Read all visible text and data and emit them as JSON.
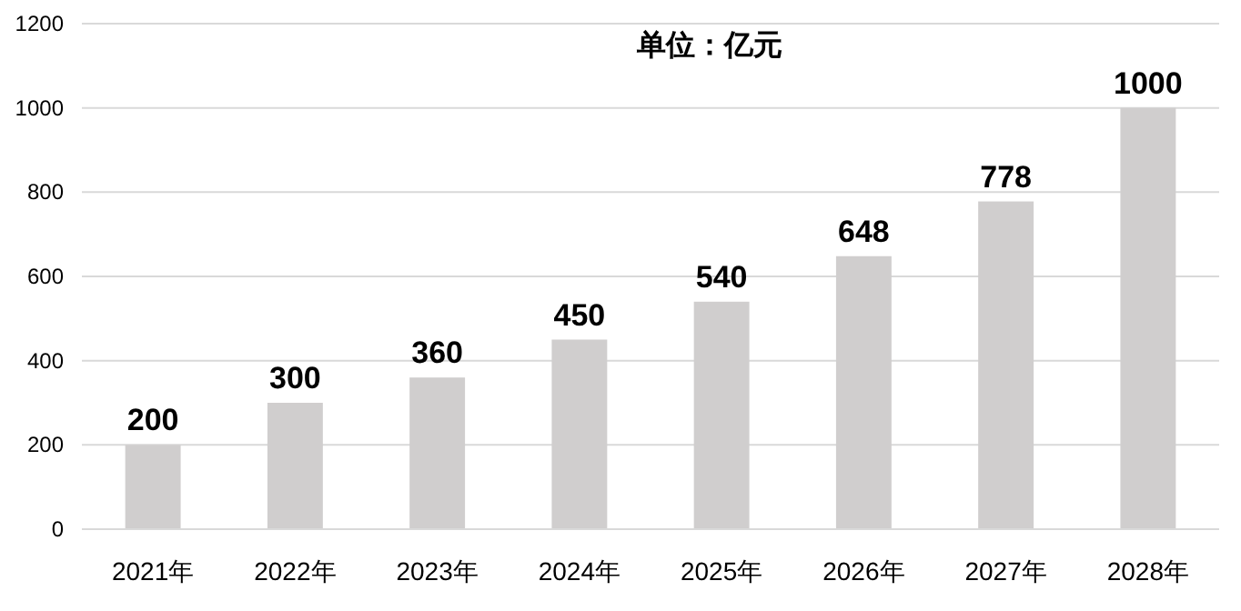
{
  "chart_data": {
    "type": "bar",
    "title": "单位：亿元",
    "categories": [
      "2021年",
      "2022年",
      "2023年",
      "2024年",
      "2025年",
      "2026年",
      "2027年",
      "2028年"
    ],
    "values": [
      200,
      300,
      360,
      450,
      540,
      648,
      778,
      1000
    ],
    "color": "#d0cece",
    "ylim": [
      0,
      1200
    ],
    "yticks": [
      0,
      200,
      400,
      600,
      800,
      1000,
      1200
    ],
    "grid": "y",
    "data_labels": true
  }
}
